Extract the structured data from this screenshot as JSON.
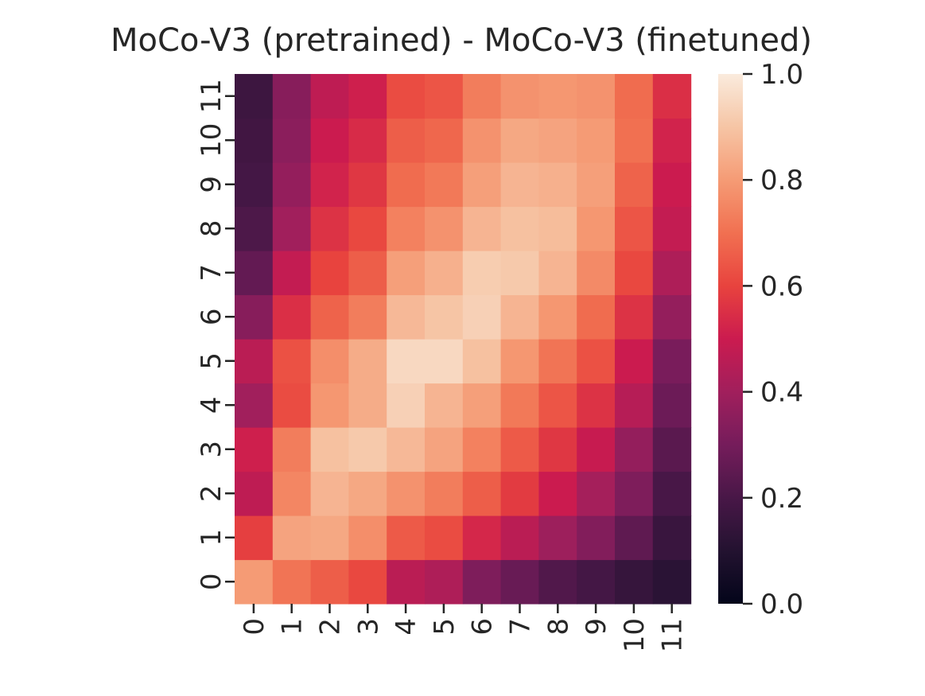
{
  "chart_data": {
    "type": "heatmap",
    "title": "MoCo-V3 (pretrained) - MoCo-V3 (finetuned)",
    "xlabel": "",
    "ylabel": "",
    "x_categories": [
      "0",
      "1",
      "2",
      "3",
      "4",
      "5",
      "6",
      "7",
      "8",
      "9",
      "10",
      "11"
    ],
    "y_categories": [
      "0",
      "1",
      "2",
      "3",
      "4",
      "5",
      "6",
      "7",
      "8",
      "9",
      "10",
      "11"
    ],
    "y_order": "bottom-to-top",
    "colormap": "rocket",
    "colorbar": {
      "ticks": [
        "0.0",
        "0.2",
        "0.4",
        "0.6",
        "0.8",
        "1.0"
      ],
      "range": [
        0.0,
        1.0
      ]
    },
    "values": [
      [
        0.8,
        0.71,
        0.66,
        0.61,
        0.46,
        0.43,
        0.32,
        0.27,
        0.22,
        0.19,
        0.15,
        0.12
      ],
      [
        0.59,
        0.82,
        0.83,
        0.77,
        0.65,
        0.62,
        0.53,
        0.46,
        0.39,
        0.33,
        0.25,
        0.16
      ],
      [
        0.47,
        0.75,
        0.86,
        0.83,
        0.78,
        0.73,
        0.66,
        0.58,
        0.5,
        0.41,
        0.32,
        0.2
      ],
      [
        0.51,
        0.73,
        0.89,
        0.91,
        0.87,
        0.82,
        0.74,
        0.65,
        0.57,
        0.49,
        0.37,
        0.24
      ],
      [
        0.4,
        0.62,
        0.79,
        0.84,
        0.93,
        0.86,
        0.81,
        0.72,
        0.64,
        0.56,
        0.45,
        0.28
      ],
      [
        0.46,
        0.63,
        0.77,
        0.84,
        0.95,
        0.95,
        0.89,
        0.79,
        0.71,
        0.63,
        0.5,
        0.31
      ],
      [
        0.34,
        0.55,
        0.67,
        0.73,
        0.87,
        0.9,
        0.93,
        0.86,
        0.79,
        0.69,
        0.56,
        0.37
      ],
      [
        0.26,
        0.48,
        0.6,
        0.66,
        0.81,
        0.85,
        0.92,
        0.91,
        0.86,
        0.76,
        0.61,
        0.43
      ],
      [
        0.21,
        0.4,
        0.56,
        0.61,
        0.74,
        0.78,
        0.86,
        0.89,
        0.88,
        0.79,
        0.64,
        0.48
      ],
      [
        0.19,
        0.37,
        0.52,
        0.57,
        0.69,
        0.72,
        0.81,
        0.86,
        0.85,
        0.81,
        0.67,
        0.5
      ],
      [
        0.18,
        0.35,
        0.5,
        0.54,
        0.66,
        0.68,
        0.78,
        0.83,
        0.82,
        0.8,
        0.7,
        0.52
      ],
      [
        0.17,
        0.34,
        0.47,
        0.51,
        0.62,
        0.64,
        0.73,
        0.78,
        0.79,
        0.78,
        0.69,
        0.55
      ]
    ]
  }
}
